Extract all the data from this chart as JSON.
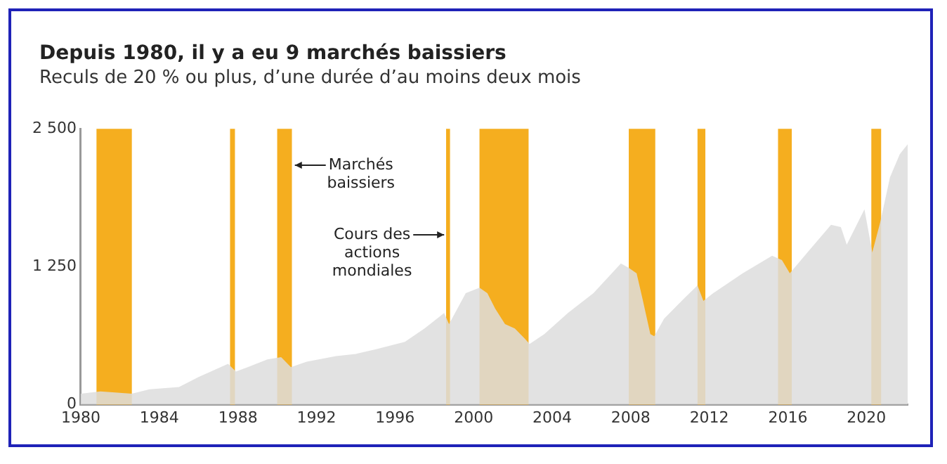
{
  "chart_data": {
    "type": "area",
    "title": "Depuis 1980, il y a eu 9 marchés baissiers",
    "subtitle": "Reculs de 20 % ou plus, d’une durée d’au moins deux mois",
    "x": [
      1980,
      1981,
      1982.6,
      1983.5,
      1985,
      1986,
      1987.5,
      1987.9,
      1988.5,
      1989.5,
      1990.2,
      1990.7,
      1991.5,
      1993,
      1994,
      1995,
      1996.5,
      1997.5,
      1998.5,
      1998.75,
      1999.6,
      2000.3,
      2000.7,
      2001.1,
      2001.6,
      2002.1,
      2002.6,
      2002.85,
      2003.6,
      2004.8,
      2006.1,
      2007.5,
      2007.9,
      2008.3,
      2008.6,
      2009,
      2009.2,
      2009.7,
      2010.7,
      2011.4,
      2011.7,
      2012.2,
      2013.7,
      2015.2,
      2015.7,
      2016.1,
      2017,
      2018.2,
      2018.7,
      2019,
      2019.9,
      2020.3,
      2020.7,
      2021.2,
      2021.7,
      2022.1
    ],
    "series": [
      {
        "color": "#dddddd",
        "values": [
          100,
          120,
          100,
          140,
          160,
          250,
          370,
          300,
          340,
          410,
          430,
          340,
          390,
          440,
          460,
          500,
          570,
          690,
          830,
          730,
          1010,
          1060,
          1010,
          870,
          730,
          690,
          600,
          550,
          640,
          830,
          1010,
          1280,
          1240,
          1190,
          960,
          640,
          620,
          780,
          960,
          1080,
          940,
          1010,
          1190,
          1350,
          1310,
          1190,
          1380,
          1630,
          1610,
          1450,
          1770,
          1380,
          1650,
          2060,
          2270,
          2360
        ]
      }
    ],
    "xlim": [
      1980,
      2022.1
    ],
    "ylim": [
      0,
      2500
    ],
    "xticks": [
      1980,
      1984,
      1988,
      1992,
      1996,
      2000,
      2004,
      2008,
      2012,
      2016,
      2020
    ],
    "yticks": [
      0,
      {
        "value": 1250,
        "label": "1 250"
      },
      {
        "value": 2500,
        "label": "2 500"
      }
    ],
    "grid": false,
    "legend": false,
    "bands": [
      {
        "axis": "x",
        "from": 1980.8,
        "to": 1982.6,
        "color": "#f5ae1f"
      },
      {
        "axis": "x",
        "from": 1987.6,
        "to": 1987.85,
        "color": "#f5ae1f"
      },
      {
        "axis": "x",
        "from": 1990,
        "to": 1990.75,
        "color": "#f5ae1f"
      },
      {
        "axis": "x",
        "from": 1998.6,
        "to": 1998.8,
        "color": "#f5ae1f"
      },
      {
        "axis": "x",
        "from": 2000.3,
        "to": 2002.8,
        "color": "#f5ae1f"
      },
      {
        "axis": "x",
        "from": 2007.9,
        "to": 2009.25,
        "color": "#f5ae1f"
      },
      {
        "axis": "x",
        "from": 2011.4,
        "to": 2011.8,
        "color": "#f5ae1f"
      },
      {
        "axis": "x",
        "from": 2015.5,
        "to": 2016.2,
        "color": "#f5ae1f"
      },
      {
        "axis": "x",
        "from": 2020.25,
        "to": 2020.75,
        "color": "#f5ae1f"
      }
    ],
    "annotations": [
      {
        "text": "Marchés\nbaissiers",
        "x": 1990.9,
        "y": 2170
      },
      {
        "text": "Cours des\nactions\nmondiales",
        "x": 1998.5,
        "y": 1540
      }
    ]
  }
}
